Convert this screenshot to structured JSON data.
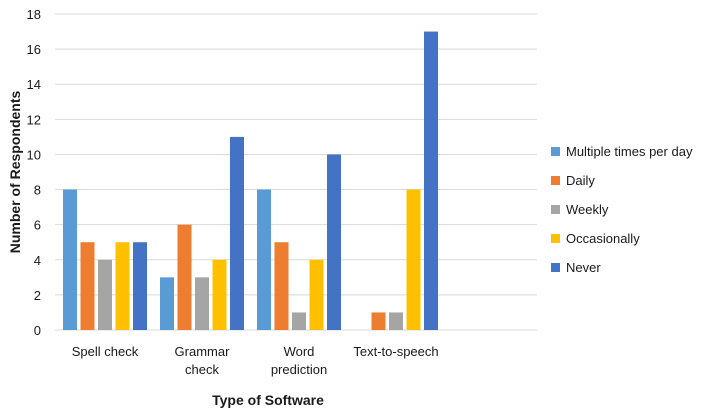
{
  "chart_data": {
    "type": "bar",
    "title": "",
    "xlabel": "Type of Software",
    "ylabel": "Number of Respondents",
    "ylim": [
      0,
      18
    ],
    "yticks": [
      "0",
      "2",
      "4",
      "6",
      "8",
      "10",
      "12",
      "14",
      "16",
      "18"
    ],
    "grid": true,
    "legend_position": "right",
    "categories": [
      [
        "Spell check"
      ],
      [
        "Grammar",
        "check"
      ],
      [
        "Word",
        "prediction"
      ],
      [
        "Text-to-speech"
      ]
    ],
    "series": [
      {
        "name": "Multiple times per day",
        "color": "#5B9BD5",
        "values": [
          8,
          3,
          8,
          0
        ]
      },
      {
        "name": "Daily",
        "color": "#ED7D31",
        "values": [
          5,
          6,
          5,
          1
        ]
      },
      {
        "name": "Weekly",
        "color": "#A5A5A5",
        "values": [
          4,
          3,
          1,
          1
        ]
      },
      {
        "name": "Occasionally",
        "color": "#FFC000",
        "values": [
          5,
          4,
          4,
          8
        ]
      },
      {
        "name": "Never",
        "color": "#4472C4",
        "values": [
          5,
          11,
          10,
          17
        ]
      }
    ]
  }
}
